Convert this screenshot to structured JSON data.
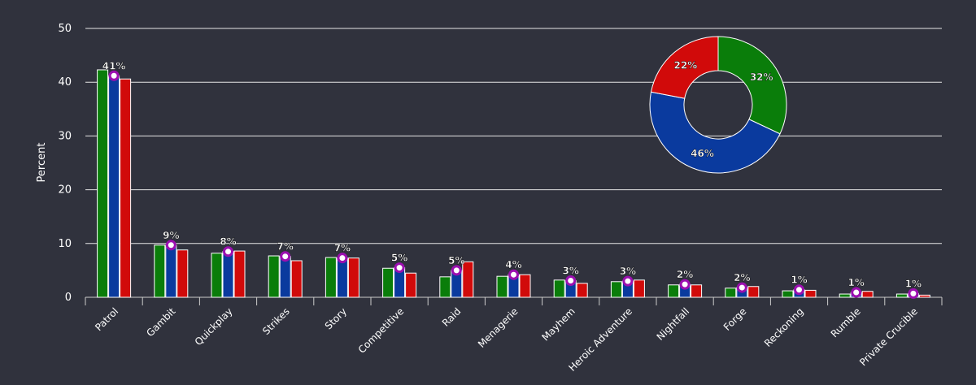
{
  "chart_data": {
    "type": "bar",
    "title": "",
    "xlabel": "",
    "ylabel": "Percent",
    "ylim": [
      0,
      50
    ],
    "yticks": [
      "0",
      "10",
      "20",
      "30",
      "40",
      "50"
    ],
    "grid": true,
    "categories": [
      "Patrol",
      "Gambit",
      "Quickplay",
      "Strikes",
      "Story",
      "Competitive",
      "Raid",
      "Menagerie",
      "Mayhem",
      "Heroic Adventure",
      "Nightfall",
      "Forge",
      "Reckoning",
      "Rumble",
      "Private Crucible"
    ],
    "series": [
      {
        "name": "green",
        "color": "#0a7d0a",
        "values": [
          42.3,
          9.7,
          8.2,
          7.7,
          7.4,
          5.4,
          3.8,
          3.9,
          3.2,
          2.9,
          2.3,
          1.7,
          1.2,
          0.6,
          0.6
        ]
      },
      {
        "name": "blue",
        "color": "#0a3a9e",
        "values": [
          41.2,
          9.7,
          8.5,
          7.6,
          7.3,
          5.5,
          5.0,
          4.2,
          3.1,
          3.0,
          2.4,
          1.8,
          1.4,
          0.9,
          0.7
        ]
      },
      {
        "name": "red",
        "color": "#d10a0a",
        "values": [
          40.6,
          8.8,
          8.6,
          6.8,
          7.3,
          4.5,
          6.6,
          4.2,
          2.6,
          3.2,
          2.3,
          2.0,
          1.3,
          1.1,
          0.4
        ]
      }
    ],
    "data_labels": [
      "41%",
      "9%",
      "8%",
      "7%",
      "7%",
      "5%",
      "5%",
      "4%",
      "3%",
      "3%",
      "2%",
      "2%",
      "1%",
      "1%",
      "1%"
    ],
    "marker_color": "#9c0fb0",
    "pie": {
      "type": "donut",
      "slices": [
        {
          "label": "32%",
          "value": 32,
          "color": "#0a7d0a"
        },
        {
          "label": "46%",
          "value": 46,
          "color": "#0a3a9e"
        },
        {
          "label": "22%",
          "value": 22,
          "color": "#d10a0a"
        }
      ]
    }
  }
}
